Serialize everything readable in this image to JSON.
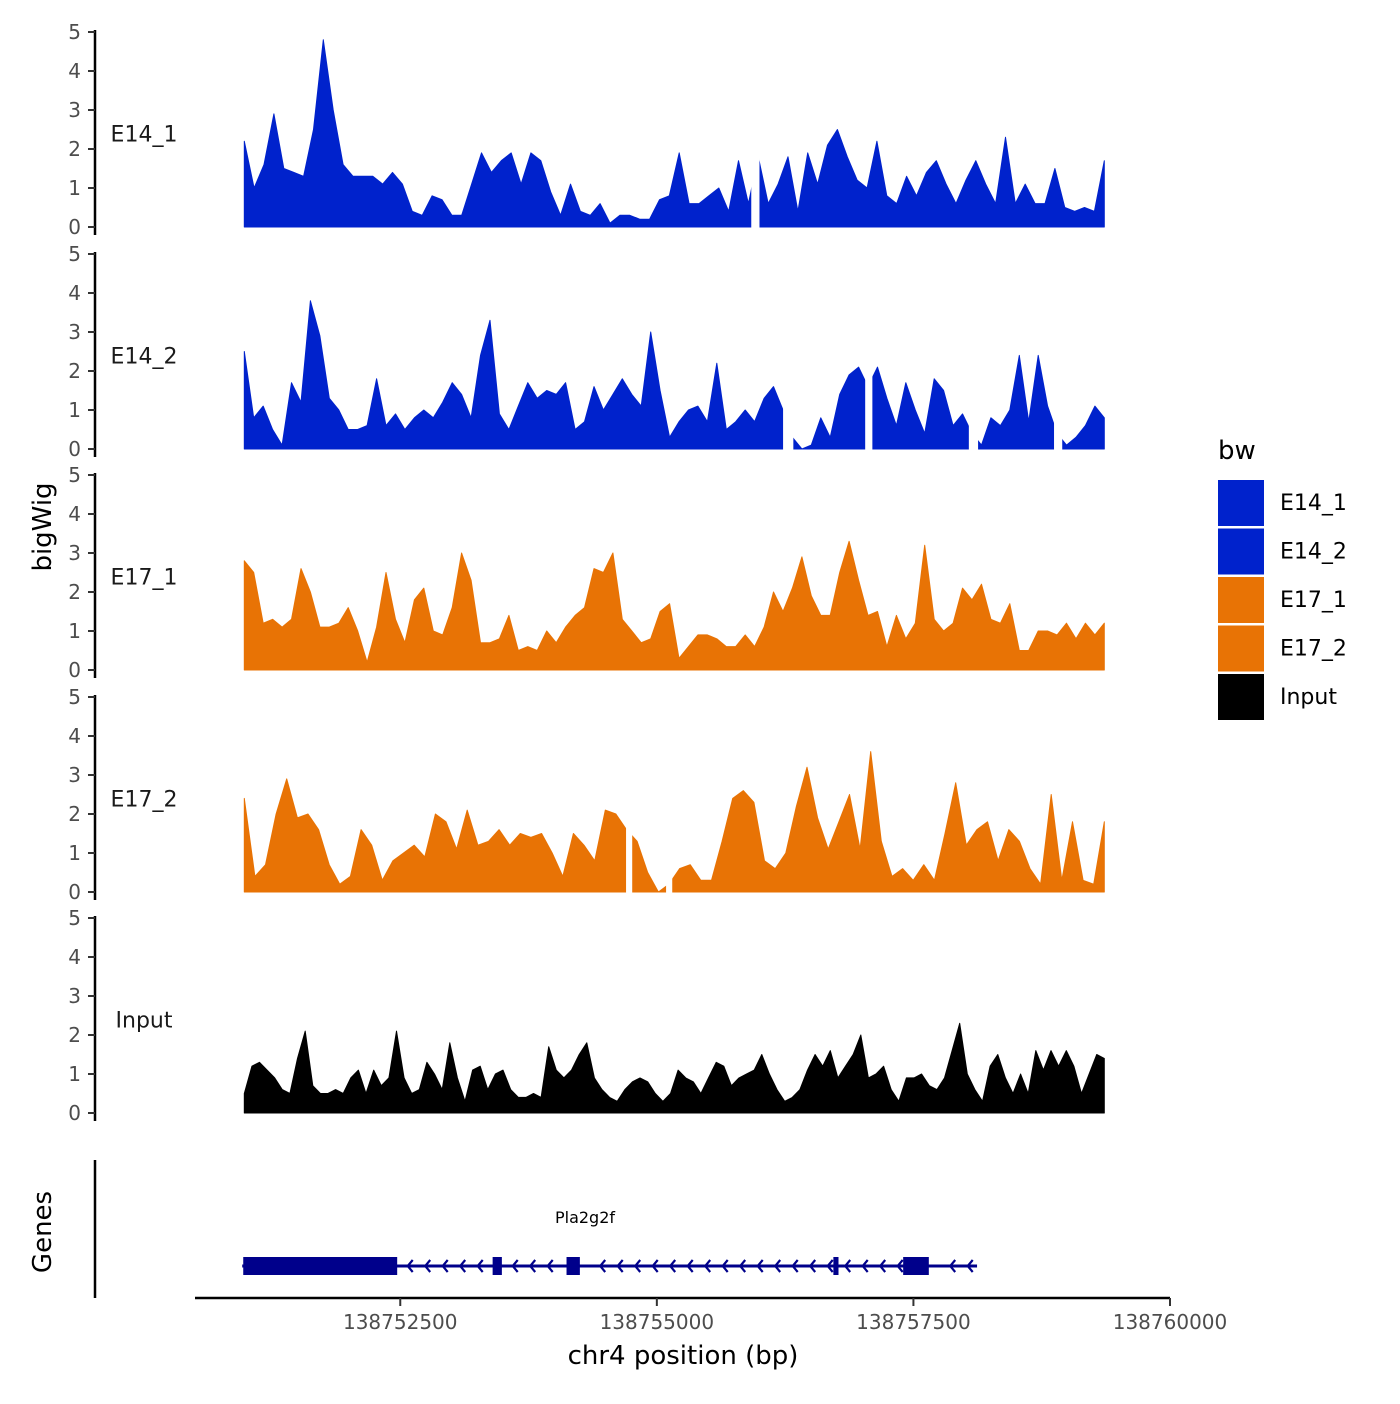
{
  "colors": {
    "E14": "#0022cc",
    "E17": "#e87305",
    "Input": "#000000",
    "gene": "#00008b"
  },
  "chart_data": {
    "type": "area",
    "ylabel": "bigWig",
    "xlabel": "chr4 position (bp)",
    "gene_track_label": "Genes",
    "ylim": [
      0,
      5
    ],
    "yticks": [
      "0",
      "1",
      "2",
      "3",
      "4",
      "5"
    ],
    "xlim": [
      138750500,
      138760000
    ],
    "xticks": [
      {
        "value": 138752500,
        "label": "138752500"
      },
      {
        "value": 138755000,
        "label": "138755000"
      },
      {
        "value": 138757500,
        "label": "138757500"
      },
      {
        "value": 138760000,
        "label": "138760000"
      }
    ],
    "legend": {
      "title": "bw",
      "entries": [
        {
          "label": "E14_1",
          "color": "#0022cc"
        },
        {
          "label": "E14_2",
          "color": "#0022cc"
        },
        {
          "label": "E17_1",
          "color": "#e87305"
        },
        {
          "label": "E17_2",
          "color": "#e87305"
        },
        {
          "label": "Input",
          "color": "#000000"
        }
      ]
    },
    "x_start": 138750980,
    "x_end": 138759360,
    "series": [
      {
        "name": "E14_1",
        "color": "#0022cc",
        "values": [
          2.2,
          1.0,
          1.6,
          2.9,
          1.5,
          1.4,
          1.3,
          2.5,
          4.8,
          3.0,
          1.6,
          1.3,
          1.3,
          1.3,
          1.1,
          1.4,
          1.1,
          0.4,
          0.3,
          0.8,
          0.7,
          0.3,
          0.3,
          1.1,
          1.9,
          1.4,
          1.7,
          1.9,
          1.1,
          1.9,
          1.7,
          0.9,
          0.3,
          1.1,
          0.4,
          0.3,
          0.6,
          0.1,
          0.3,
          0.3,
          0.2,
          0.2,
          0.7,
          0.8,
          1.9,
          0.6,
          0.6,
          0.8,
          1.0,
          0.4,
          1.7,
          0.6,
          1.8,
          0.6,
          1.1,
          1.8,
          0.4,
          1.9,
          1.1,
          2.1,
          2.5,
          1.8,
          1.2,
          1.0,
          2.2,
          0.8,
          0.6,
          1.3,
          0.8,
          1.4,
          1.7,
          1.1,
          0.6,
          1.2,
          1.7,
          1.1,
          0.6,
          2.3,
          0.6,
          1.1,
          0.6,
          0.6,
          1.5,
          0.5,
          0.4,
          0.5,
          0.4,
          1.7
        ],
        "gaps": [
          [
            138755920,
            138756000
          ]
        ]
      },
      {
        "name": "E14_2",
        "color": "#0022cc",
        "values": [
          2.5,
          0.8,
          1.1,
          0.5,
          0.1,
          1.7,
          1.2,
          3.8,
          2.9,
          1.3,
          1.0,
          0.5,
          0.5,
          0.6,
          1.8,
          0.6,
          0.9,
          0.5,
          0.8,
          1.0,
          0.8,
          1.2,
          1.7,
          1.4,
          0.8,
          2.4,
          3.3,
          0.9,
          0.5,
          1.1,
          1.7,
          1.3,
          1.5,
          1.4,
          1.7,
          0.5,
          0.7,
          1.6,
          1.0,
          1.4,
          1.8,
          1.4,
          1.1,
          3.0,
          1.5,
          0.3,
          0.7,
          1.0,
          1.1,
          0.7,
          2.2,
          0.5,
          0.7,
          1.0,
          0.7,
          1.3,
          1.6,
          1.0,
          0.3,
          0.0,
          0.1,
          0.8,
          0.3,
          1.4,
          1.9,
          2.1,
          1.6,
          2.1,
          1.3,
          0.6,
          1.7,
          1.0,
          0.4,
          1.8,
          1.5,
          0.6,
          0.9,
          0.4,
          0.1,
          0.8,
          0.6,
          1.0,
          2.4,
          0.7,
          2.4,
          1.1,
          0.4,
          0.1,
          0.3,
          0.6,
          1.1,
          0.8
        ],
        "gaps": [
          [
            138756230,
            138756330
          ],
          [
            138757030,
            138757100
          ],
          [
            138758040,
            138758130
          ],
          [
            138758870,
            138758950
          ]
        ]
      },
      {
        "name": "E17_1",
        "color": "#e87305",
        "values": [
          2.8,
          2.5,
          1.2,
          1.3,
          1.1,
          1.3,
          2.6,
          2.0,
          1.1,
          1.1,
          1.2,
          1.6,
          1.0,
          0.2,
          1.1,
          2.5,
          1.3,
          0.7,
          1.8,
          2.1,
          1.0,
          0.9,
          1.6,
          3.0,
          2.3,
          0.7,
          0.7,
          0.8,
          1.4,
          0.5,
          0.6,
          0.5,
          1.0,
          0.7,
          1.1,
          1.4,
          1.6,
          2.6,
          2.5,
          3.0,
          1.3,
          1.0,
          0.7,
          0.8,
          1.5,
          1.7,
          0.3,
          0.6,
          0.9,
          0.9,
          0.8,
          0.6,
          0.6,
          0.9,
          0.6,
          1.1,
          2.0,
          1.5,
          2.1,
          2.9,
          1.9,
          1.4,
          1.4,
          2.5,
          3.3,
          2.3,
          1.4,
          1.5,
          0.6,
          1.4,
          0.8,
          1.2,
          3.2,
          1.3,
          1.0,
          1.2,
          2.1,
          1.8,
          2.2,
          1.3,
          1.2,
          1.7,
          0.5,
          0.5,
          1.0,
          1.0,
          0.9,
          1.2,
          0.8,
          1.2,
          0.9,
          1.2
        ]
      },
      {
        "name": "E17_2",
        "color": "#e87305",
        "values": [
          2.4,
          0.4,
          0.7,
          2.0,
          2.9,
          1.9,
          2.0,
          1.6,
          0.7,
          0.2,
          0.4,
          1.6,
          1.2,
          0.3,
          0.8,
          1.0,
          1.2,
          0.9,
          2.0,
          1.8,
          1.1,
          2.1,
          1.2,
          1.3,
          1.6,
          1.2,
          1.5,
          1.4,
          1.5,
          1.0,
          0.4,
          1.5,
          1.2,
          0.8,
          2.1,
          2.0,
          1.6,
          1.3,
          0.5,
          0.0,
          0.2,
          0.6,
          0.7,
          0.3,
          0.3,
          1.3,
          2.4,
          2.6,
          2.3,
          0.8,
          0.6,
          1.0,
          2.2,
          3.2,
          1.9,
          1.1,
          1.8,
          2.5,
          1.1,
          3.6,
          1.3,
          0.4,
          0.6,
          0.3,
          0.7,
          0.3,
          1.5,
          2.8,
          1.2,
          1.6,
          1.8,
          0.8,
          1.6,
          1.3,
          0.6,
          0.2,
          2.5,
          0.3,
          1.8,
          0.3,
          0.2,
          1.8
        ],
        "gaps": [
          [
            138754700,
            138754760
          ],
          [
            138755090,
            138755150
          ]
        ]
      },
      {
        "name": "Input",
        "color": "#000000",
        "values": [
          0.5,
          1.2,
          1.3,
          1.1,
          0.9,
          0.6,
          0.5,
          1.4,
          2.1,
          0.7,
          0.5,
          0.5,
          0.6,
          0.5,
          0.9,
          1.1,
          0.5,
          1.1,
          0.7,
          0.9,
          2.1,
          0.9,
          0.5,
          0.6,
          1.3,
          1.0,
          0.6,
          1.8,
          0.9,
          0.3,
          1.1,
          1.2,
          0.6,
          1.0,
          1.1,
          0.6,
          0.4,
          0.4,
          0.5,
          0.4,
          1.7,
          1.1,
          0.9,
          1.1,
          1.5,
          1.8,
          0.9,
          0.6,
          0.4,
          0.3,
          0.6,
          0.8,
          0.9,
          0.8,
          0.5,
          0.3,
          0.5,
          1.1,
          0.9,
          0.8,
          0.5,
          0.9,
          1.3,
          1.2,
          0.7,
          0.9,
          1.0,
          1.1,
          1.5,
          1.0,
          0.6,
          0.3,
          0.4,
          0.6,
          1.1,
          1.5,
          1.2,
          1.6,
          0.9,
          1.2,
          1.5,
          2.0,
          0.9,
          1.0,
          1.2,
          0.6,
          0.3,
          0.9,
          0.9,
          1.0,
          0.7,
          0.6,
          0.9,
          1.6,
          2.3,
          1.0,
          0.6,
          0.3,
          1.2,
          1.5,
          0.9,
          0.5,
          1.0,
          0.5,
          1.6,
          1.1,
          1.6,
          1.2,
          1.6,
          1.2,
          0.5,
          1.0,
          1.5,
          1.4
        ]
      }
    ],
    "gene": {
      "name": "Pla2g2f",
      "strand": "-",
      "start": 138750960,
      "end": 138758120,
      "exons": [
        [
          138750970,
          138752470
        ],
        [
          138753400,
          138753490
        ],
        [
          138754120,
          138754250
        ],
        [
          138756720,
          138756770
        ],
        [
          138757400,
          138757650
        ]
      ]
    }
  }
}
